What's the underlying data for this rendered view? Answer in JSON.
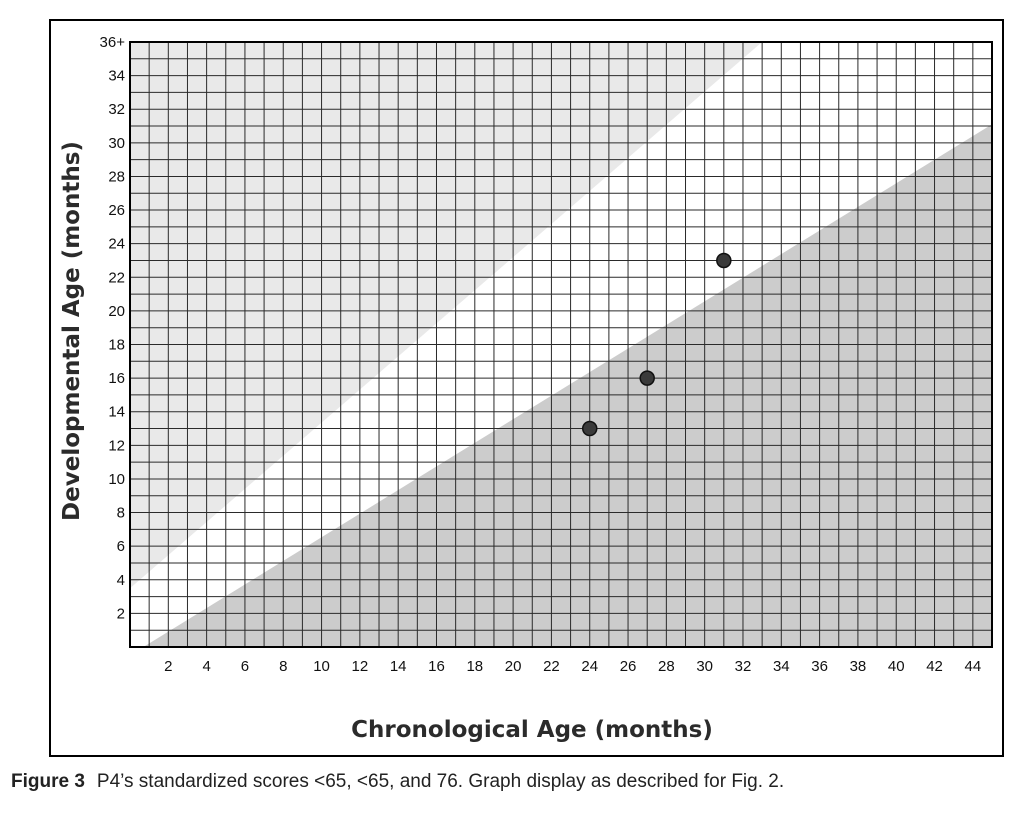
{
  "chart_data": {
    "type": "scatter",
    "title": "",
    "xlabel": "Chronological Age (months)",
    "ylabel": "Developmental Age (months)",
    "xlim": [
      0,
      45
    ],
    "ylim": [
      0,
      36
    ],
    "x_ticks": [
      "2",
      "4",
      "6",
      "8",
      "10",
      "12",
      "14",
      "16",
      "18",
      "20",
      "22",
      "24",
      "26",
      "28",
      "30",
      "32",
      "34",
      "36",
      "38",
      "40",
      "42",
      "44"
    ],
    "y_ticks": [
      "2",
      "4",
      "6",
      "8",
      "10",
      "12",
      "14",
      "16",
      "18",
      "20",
      "22",
      "24",
      "26",
      "28",
      "30",
      "32",
      "34",
      "36+"
    ],
    "grid": true,
    "grid_step": 1,
    "points": [
      {
        "x": 24,
        "y": 13
      },
      {
        "x": 27,
        "y": 16
      },
      {
        "x": 31,
        "y": 23
      }
    ],
    "shaded_regions": [
      {
        "name": "above-upper-line",
        "line": {
          "x0": 0,
          "y0": 3.5,
          "x1": 33,
          "y1": 36
        },
        "side": "above",
        "color": "#e9e9e9"
      },
      {
        "name": "below-lower-line",
        "line": {
          "x0": 0.7,
          "y0": 0,
          "x1": 45,
          "y1": 31.1
        },
        "side": "below",
        "color": "#cccccc"
      }
    ],
    "colors": {
      "grid": "#2a2a2a",
      "point": "#3a3a3a",
      "axis": "#000000"
    }
  },
  "caption": {
    "label": "Figure 3",
    "text": "P4’s standardized scores <65, <65, and 76. Graph display as described for Fig. 2."
  }
}
